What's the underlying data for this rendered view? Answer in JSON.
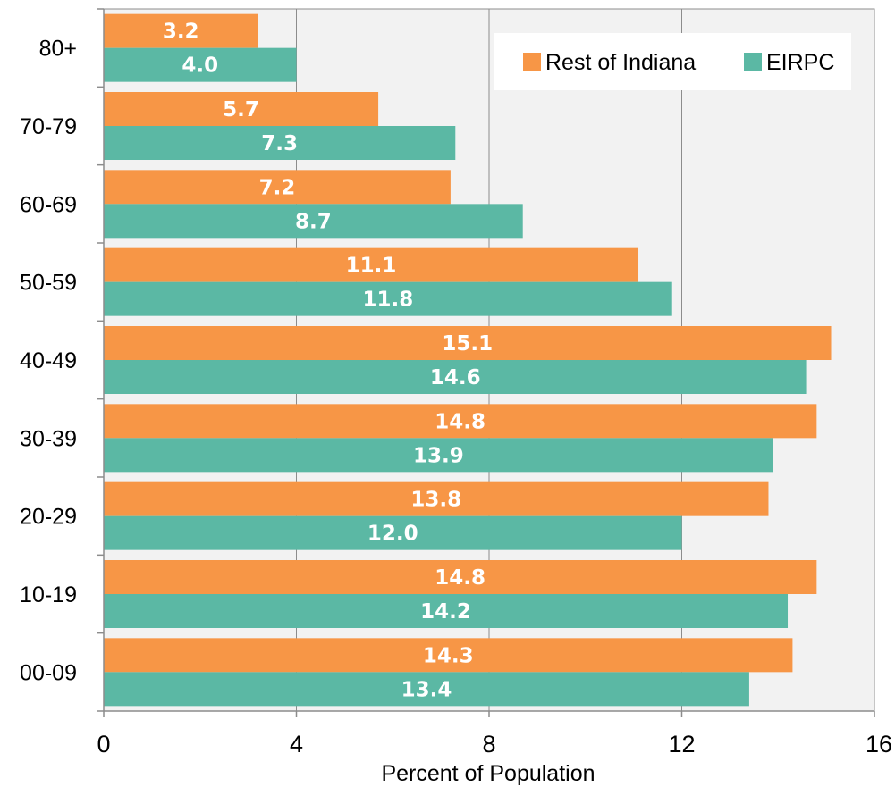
{
  "chart_data": {
    "type": "bar",
    "orientation": "horizontal",
    "categories": [
      "80+",
      "70-79",
      "60-69",
      "50-59",
      "40-49",
      "30-39",
      "20-29",
      "10-19",
      "00-09"
    ],
    "series": [
      {
        "name": "Rest of Indiana",
        "color": "#f79646",
        "values": [
          3.2,
          5.7,
          7.2,
          11.1,
          15.1,
          14.8,
          13.8,
          14.8,
          14.3
        ],
        "labels": [
          "3.2",
          "5.7",
          "7.2",
          "11.1",
          "15.1",
          "14.8",
          "13.8",
          "14.8",
          "14.3"
        ]
      },
      {
        "name": "EIRPC",
        "color": "#5bb8a4",
        "values": [
          4.0,
          7.3,
          8.7,
          11.8,
          14.6,
          13.9,
          12.0,
          14.2,
          13.4
        ],
        "labels": [
          "4.0",
          "7.3",
          "8.7",
          "11.8",
          "14.6",
          "13.9",
          "12.0",
          "14.2",
          "13.4"
        ]
      }
    ],
    "xlabel": "Percent of Population",
    "xlim": [
      0,
      16
    ],
    "xticks": [
      0,
      4,
      8,
      12,
      16
    ],
    "xtick_labels": [
      "0",
      "4",
      "8",
      "12",
      "16"
    ],
    "grid": "vertical",
    "plot_background": "#f2f2f2",
    "legend_position": "top-right"
  }
}
